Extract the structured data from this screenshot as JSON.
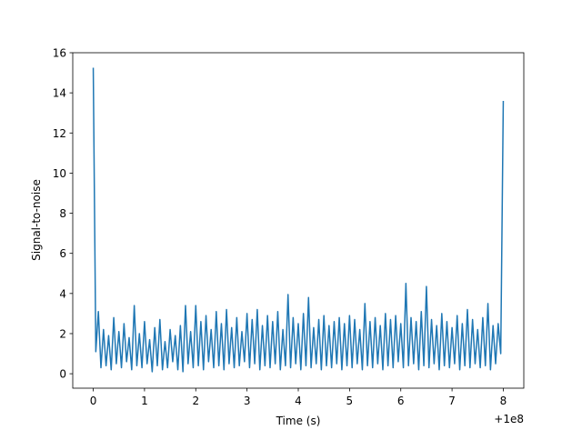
{
  "chart_data": {
    "type": "line",
    "x_label": "Time (s)",
    "y_label": "Signal-to-noise",
    "x_offset_label": "+1e8",
    "xlim": [
      -0.4,
      8.4
    ],
    "ylim": [
      -0.72,
      16
    ],
    "xticks": [
      0,
      1,
      2,
      3,
      4,
      5,
      6,
      7,
      8
    ],
    "yticks": [
      0,
      2,
      4,
      6,
      8,
      10,
      12,
      14,
      16
    ],
    "grid": false,
    "series": [
      {
        "color": "#1f77b4",
        "x": [
          0,
          0.05,
          0.1,
          0.15,
          0.2,
          0.25,
          0.3,
          0.35,
          0.4,
          0.45,
          0.5,
          0.55,
          0.6,
          0.65,
          0.7,
          0.75,
          0.8,
          0.85,
          0.9,
          0.95,
          1,
          1.05,
          1.1,
          1.15,
          1.2,
          1.25,
          1.3,
          1.35,
          1.4,
          1.45,
          1.5,
          1.55,
          1.6,
          1.65,
          1.7,
          1.75,
          1.8,
          1.85,
          1.9,
          1.95,
          2,
          2.05,
          2.1,
          2.15,
          2.2,
          2.25,
          2.3,
          2.35,
          2.4,
          2.45,
          2.5,
          2.55,
          2.6,
          2.65,
          2.7,
          2.75,
          2.8,
          2.85,
          2.9,
          2.95,
          3,
          3.05,
          3.1,
          3.15,
          3.2,
          3.25,
          3.3,
          3.35,
          3.4,
          3.45,
          3.5,
          3.55,
          3.6,
          3.65,
          3.7,
          3.75,
          3.8,
          3.85,
          3.9,
          3.95,
          4,
          4.05,
          4.1,
          4.15,
          4.2,
          4.25,
          4.3,
          4.35,
          4.4,
          4.45,
          4.5,
          4.55,
          4.6,
          4.65,
          4.7,
          4.75,
          4.8,
          4.85,
          4.9,
          4.95,
          5,
          5.05,
          5.1,
          5.15,
          5.2,
          5.25,
          5.3,
          5.35,
          5.4,
          5.45,
          5.5,
          5.55,
          5.6,
          5.65,
          5.7,
          5.75,
          5.8,
          5.85,
          5.9,
          5.95,
          6,
          6.05,
          6.1,
          6.15,
          6.2,
          6.25,
          6.3,
          6.35,
          6.4,
          6.45,
          6.5,
          6.55,
          6.6,
          6.65,
          6.7,
          6.75,
          6.8,
          6.85,
          6.9,
          6.95,
          7,
          7.05,
          7.1,
          7.15,
          7.2,
          7.25,
          7.3,
          7.35,
          7.4,
          7.45,
          7.5,
          7.55,
          7.6,
          7.65,
          7.7,
          7.75,
          7.8,
          7.85,
          7.9,
          7.95,
          8
        ],
        "values": [
          15.25,
          1.1,
          3.1,
          0.3,
          2.2,
          0.4,
          1.9,
          0.2,
          2.8,
          0.5,
          2.1,
          0.3,
          2.5,
          0.6,
          1.8,
          0.2,
          3.4,
          0.4,
          2.0,
          0.3,
          2.6,
          0.5,
          1.7,
          0.1,
          2.3,
          0.4,
          2.7,
          0.2,
          1.6,
          0.3,
          2.2,
          0.6,
          1.9,
          0.2,
          2.4,
          0.1,
          3.4,
          0.5,
          2.1,
          0.3,
          3.4,
          0.4,
          2.6,
          0.2,
          2.9,
          0.6,
          2.2,
          0.3,
          3.1,
          0.4,
          2.5,
          0.2,
          3.2,
          0.5,
          2.3,
          0.3,
          2.8,
          0.4,
          2.1,
          0.6,
          3.0,
          0.3,
          2.7,
          0.5,
          3.2,
          0.2,
          2.4,
          0.4,
          2.9,
          0.3,
          2.6,
          0.5,
          3.1,
          0.2,
          2.2,
          0.4,
          3.95,
          0.3,
          2.8,
          0.5,
          2.5,
          0.2,
          3.0,
          0.4,
          3.8,
          0.3,
          2.3,
          0.5,
          2.7,
          0.2,
          2.9,
          0.4,
          2.4,
          0.3,
          2.6,
          0.5,
          2.8,
          0.2,
          2.5,
          0.4,
          2.9,
          0.3,
          2.7,
          0.5,
          2.2,
          0.2,
          3.5,
          0.4,
          2.6,
          0.3,
          2.8,
          0.5,
          2.4,
          0.2,
          3.0,
          0.4,
          2.7,
          0.3,
          2.9,
          0.6,
          2.5,
          0.3,
          4.5,
          0.4,
          2.8,
          0.5,
          2.6,
          0.2,
          3.1,
          0.4,
          4.35,
          0.3,
          2.7,
          0.5,
          2.4,
          0.2,
          3.0,
          0.4,
          2.6,
          0.3,
          2.3,
          0.5,
          2.9,
          0.2,
          2.5,
          0.4,
          3.2,
          0.3,
          2.7,
          0.5,
          2.2,
          0.3,
          2.8,
          0.4,
          3.5,
          0.2,
          2.4,
          0.5,
          2.5,
          1.0,
          13.6
        ]
      }
    ]
  }
}
